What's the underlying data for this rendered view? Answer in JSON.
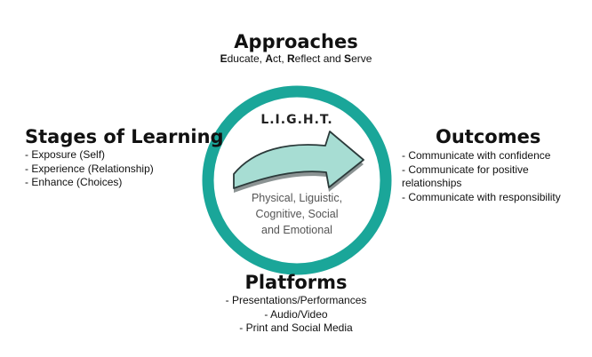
{
  "colors": {
    "ring": "#1aa699",
    "arrow_fill": "#a7ddd3",
    "arrow_stroke": "#2b3a3a",
    "text": "#111111",
    "circle_text": "#555555"
  },
  "center": {
    "title": "L.I.G.H.T.",
    "description": "Physical, Liguistic,\nCognitive, Social\nand Emotional",
    "icon": "arrow-right-icon"
  },
  "approaches": {
    "title": "Approaches",
    "subtitle_parts": [
      {
        "bold": "E",
        "rest": "ducate, "
      },
      {
        "bold": "A",
        "rest": "ct, "
      },
      {
        "bold": "R",
        "rest": "eflect and "
      },
      {
        "bold": "S",
        "rest": "erve"
      }
    ]
  },
  "stages": {
    "title": "Stages of Learning",
    "items": [
      "Exposure (Self)",
      "Experience (Relationship)",
      "Enhance (Choices)"
    ]
  },
  "outcomes": {
    "title": "Outcomes",
    "items": [
      "Communicate with confidence",
      "Communicate for positive relationships",
      "Communicate with responsibility"
    ]
  },
  "platforms": {
    "title": "Platforms",
    "items": [
      "Presentations/Performances",
      "Audio/Video",
      "Print and Social Media"
    ]
  }
}
